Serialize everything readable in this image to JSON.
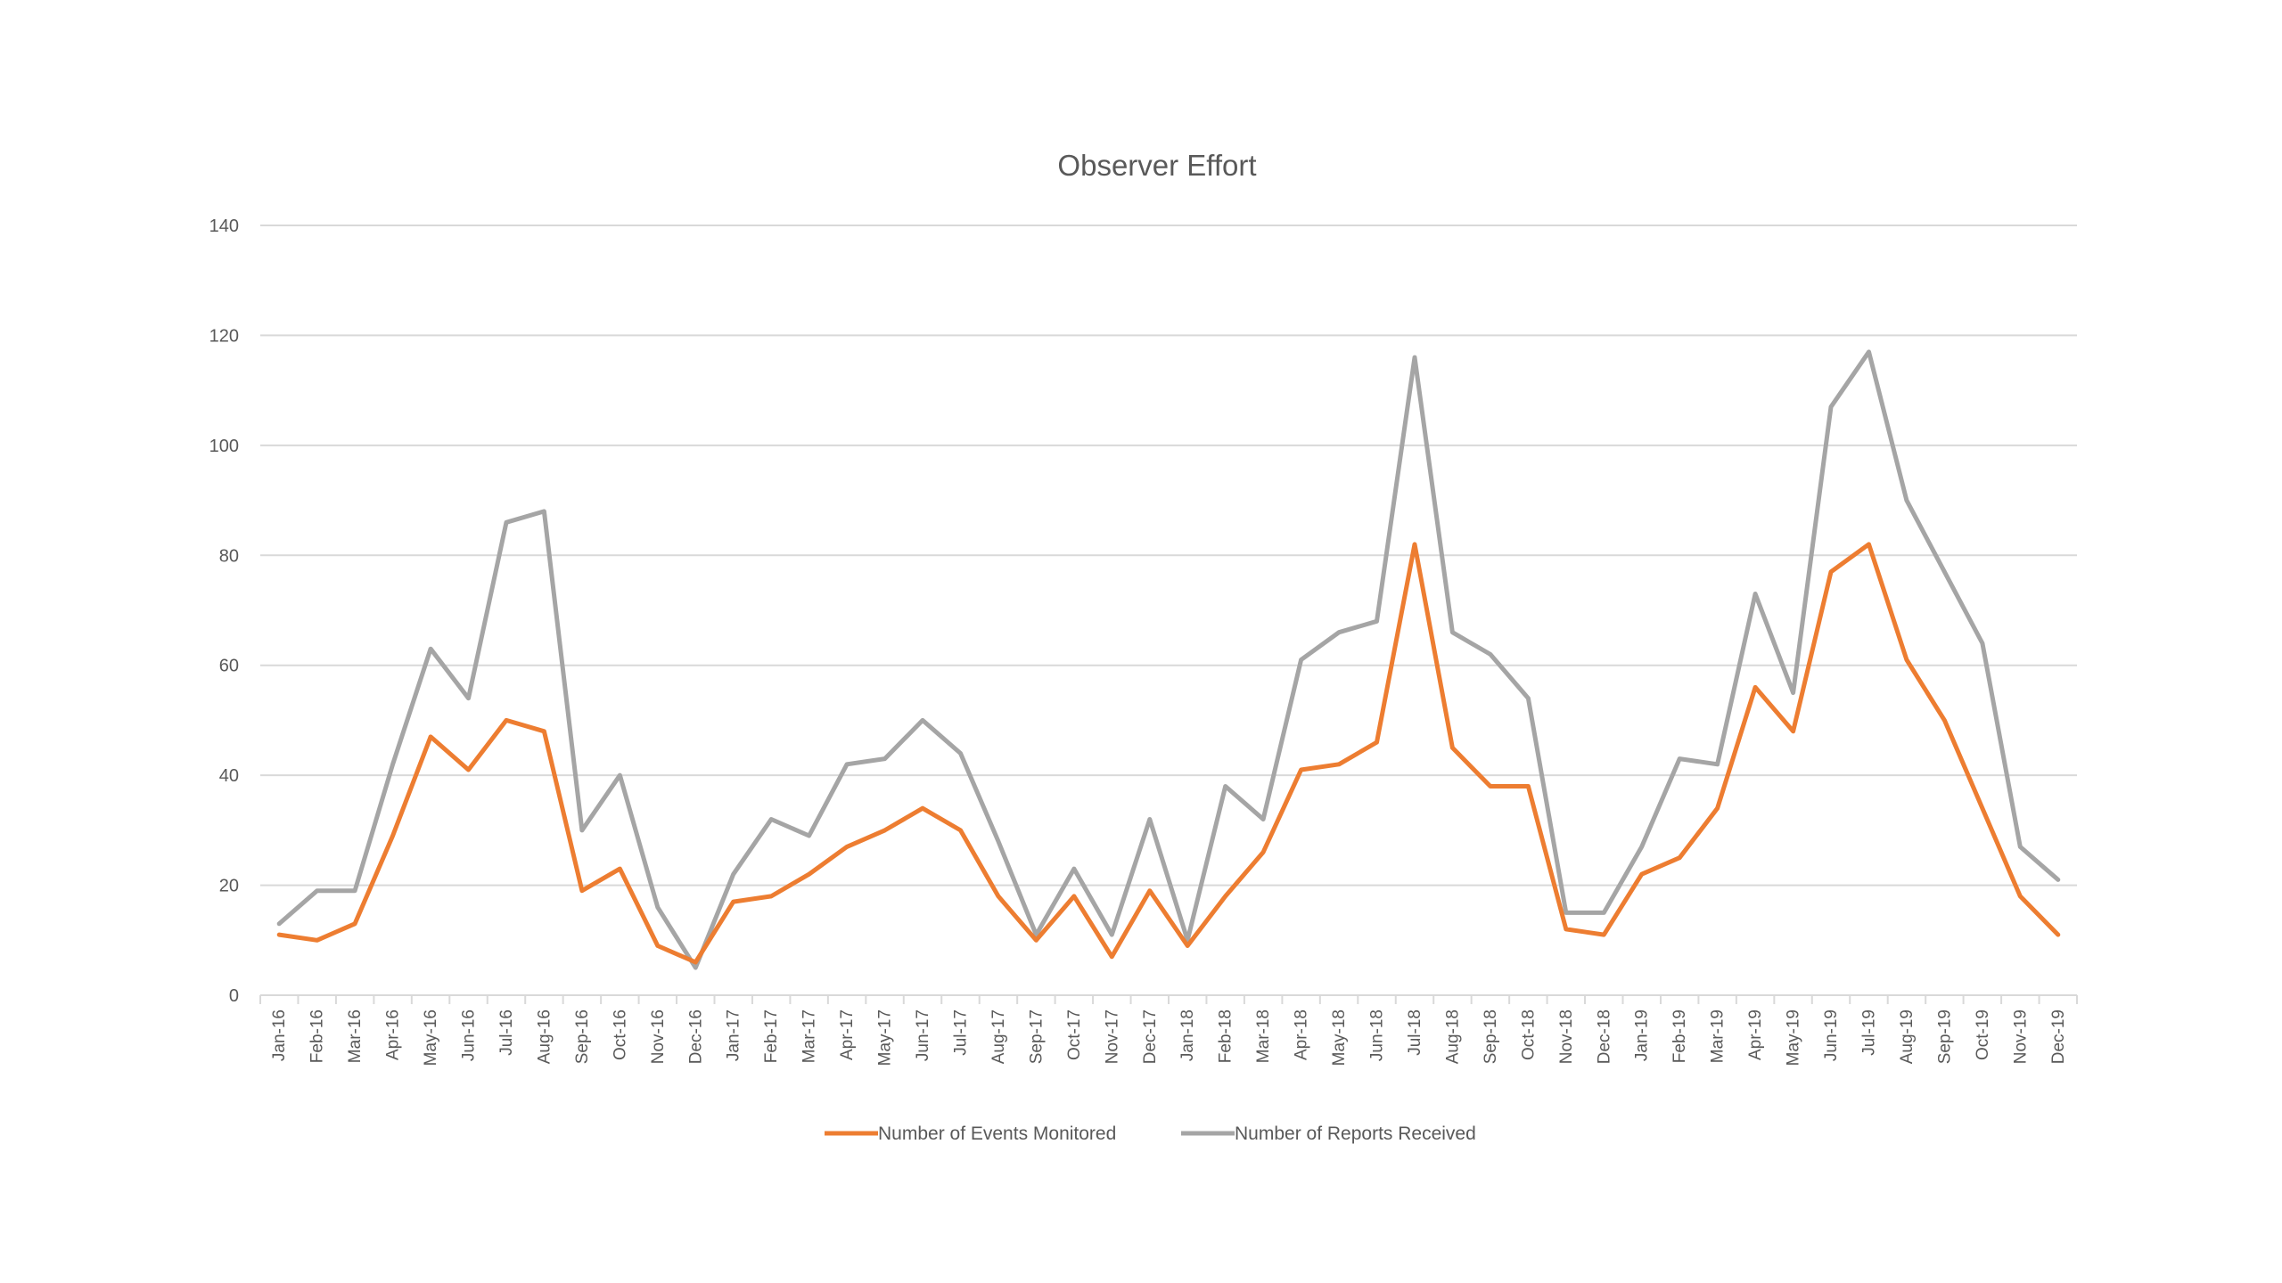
{
  "chart_data": {
    "type": "line",
    "title": "Observer Effort",
    "xlabel": "",
    "ylabel": "",
    "ylim": [
      0,
      140
    ],
    "y_ticks": [
      0,
      20,
      40,
      60,
      80,
      100,
      120,
      140
    ],
    "y_tick_labels": [
      "0",
      "20",
      "40",
      "60",
      "80",
      "100",
      "120",
      "140"
    ],
    "grid": true,
    "legend_position": "bottom",
    "categories": [
      "Jan-16",
      "Feb-16",
      "Mar-16",
      "Apr-16",
      "May-16",
      "Jun-16",
      "Jul-16",
      "Aug-16",
      "Sep-16",
      "Oct-16",
      "Nov-16",
      "Dec-16",
      "Jan-17",
      "Feb-17",
      "Mar-17",
      "Apr-17",
      "May-17",
      "Jun-17",
      "Jul-17",
      "Aug-17",
      "Sep-17",
      "Oct-17",
      "Nov-17",
      "Dec-17",
      "Jan-18",
      "Feb-18",
      "Mar-18",
      "Apr-18",
      "May-18",
      "Jun-18",
      "Jul-18",
      "Aug-18",
      "Sep-18",
      "Oct-18",
      "Nov-18",
      "Dec-18",
      "Jan-19",
      "Feb-19",
      "Mar-19",
      "Apr-19",
      "May-19",
      "Jun-19",
      "Jul-19",
      "Aug-19",
      "Sep-19",
      "Oct-19",
      "Nov-19",
      "Dec-19"
    ],
    "series": [
      {
        "name": "Number of Events Monitored",
        "color": "#ed7d31",
        "values": [
          11,
          10,
          13,
          29,
          47,
          41,
          50,
          48,
          19,
          23,
          9,
          6,
          17,
          18,
          22,
          27,
          30,
          34,
          30,
          18,
          10,
          18,
          7,
          19,
          9,
          18,
          26,
          41,
          42,
          46,
          82,
          45,
          38,
          38,
          12,
          11,
          22,
          25,
          34,
          56,
          48,
          77,
          82,
          61,
          50,
          34,
          18,
          11
        ]
      },
      {
        "name": "Number of Reports Received",
        "color": "#a5a5a5",
        "values": [
          13,
          19,
          19,
          42,
          63,
          54,
          86,
          88,
          30,
          40,
          16,
          5,
          22,
          32,
          29,
          42,
          43,
          50,
          44,
          28,
          11,
          23,
          11,
          32,
          10,
          38,
          32,
          61,
          66,
          68,
          116,
          66,
          62,
          54,
          15,
          15,
          27,
          43,
          42,
          73,
          55,
          107,
          117,
          90,
          77,
          64,
          27,
          21
        ]
      }
    ]
  }
}
